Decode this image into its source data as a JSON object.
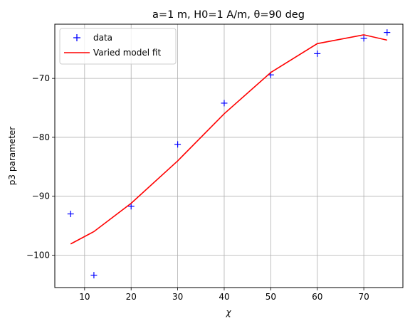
{
  "chart_data": {
    "type": "line",
    "title": "a=1 m, H0=1 A/m, θ=90 deg",
    "xlabel": "χ",
    "ylabel": "p3 parameter",
    "xlim": [
      3.6,
      78.4
    ],
    "ylim": [
      -105.5,
      -60.8
    ],
    "xticks": [
      10,
      20,
      30,
      40,
      50,
      60,
      70
    ],
    "yticks": [
      -100,
      -90,
      -80,
      -70
    ],
    "ytick_labels": [
      "−100",
      "−90",
      "−80",
      "−70"
    ],
    "grid": true,
    "legend_placement": "upper-left",
    "series": [
      {
        "name": "data",
        "marker": "+",
        "color": "#0000ff",
        "x": [
          7,
          12,
          20,
          30,
          40,
          50,
          60,
          70,
          75
        ],
        "y": [
          -93.0,
          -103.4,
          -91.7,
          -81.2,
          -74.2,
          -69.4,
          -65.8,
          -63.2,
          -62.2
        ]
      },
      {
        "name": "Varied model fit",
        "marker": "line",
        "color": "#ff0000",
        "x": [
          7,
          12,
          20,
          30,
          40,
          50,
          60,
          70,
          75
        ],
        "y": [
          -98.1,
          -96.0,
          -91.2,
          -84.0,
          -76.0,
          -69.0,
          -64.1,
          -62.6,
          -63.5
        ]
      }
    ]
  }
}
